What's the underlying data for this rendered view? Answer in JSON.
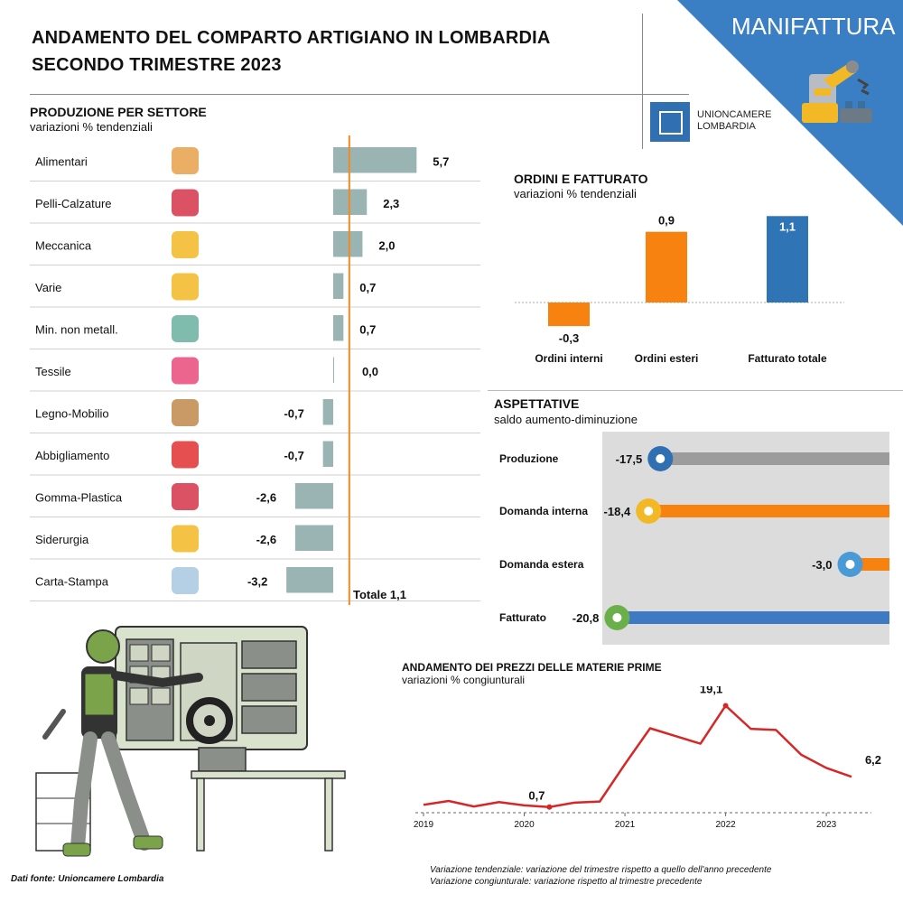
{
  "header": {
    "title_line1": "ANDAMENTO DEL COMPARTO ARTIGIANO IN LOMBARDIA",
    "title_line2": "SECONDO TRIMESTRE 2023",
    "corner_label": "MANIFATTURA",
    "logo_text_1": "UNIONCAMERE",
    "logo_text_2": "LOMBARDIA",
    "accent_color": "#3a7fc4"
  },
  "production": {
    "title": "PRODUZIONE PER SETTORE",
    "subtitle": "variazioni % tendenziali",
    "total_label": "Totale 1,1"
  },
  "orders": {
    "title": "ORDINI E FATTURATO",
    "subtitle": "variazioni % tendenziali"
  },
  "expectations": {
    "title": "ASPETTATIVE",
    "subtitle": "saldo aumento-diminuzione"
  },
  "prices": {
    "title": "ANDAMENTO DEI PREZZI DELLE MATERIE PRIME",
    "subtitle": "variazioni % congiunturali"
  },
  "footer": {
    "source": "Dati fonte: Unioncamere Lombardia",
    "note1": "Variazione tendenziale: variazione del trimestre rispetto a quello dell'anno precedente",
    "note2": "Variazione congiunturale: variazione rispetto al trimestre precedente"
  },
  "chart_data": [
    {
      "type": "bar",
      "orientation": "horizontal",
      "title": "PRODUZIONE PER SETTORE",
      "subtitle": "variazioni % tendenziali",
      "categories": [
        "Alimentari",
        "Pelli-Calzature",
        "Meccanica",
        "Varie",
        "Min. non metall.",
        "Tessile",
        "Legno-Mobilio",
        "Abbigliamento",
        "Gomma-Plastica",
        "Siderurgia",
        "Carta-Stampa"
      ],
      "values": [
        5.7,
        2.3,
        2.0,
        0.7,
        0.7,
        0.0,
        -0.7,
        -0.7,
        -2.6,
        -2.6,
        -3.2
      ],
      "labels": [
        "5,7",
        "2,3",
        "2,0",
        "0,7",
        "0,7",
        "0,0",
        "-0,7",
        "-0,7",
        "-2,6",
        "-2,6",
        "-3,2"
      ],
      "icons": [
        "grocery-bag-icon",
        "shoe-bag-icon",
        "machine-icon",
        "conveyor-boxes-icon",
        "crystal-rocks-icon",
        "thread-spools-icon",
        "chair-wood-icon",
        "dress-icon",
        "cup-icon",
        "steel-ladle-icon",
        "paper-roll-icon"
      ],
      "reference_line": 1.1,
      "bar_color": "#9ab4b4",
      "line_color": "#f08a24"
    },
    {
      "type": "bar",
      "title": "ORDINI E FATTURATO",
      "subtitle": "variazioni % tendenziali",
      "categories": [
        "Ordini interni",
        "Ordini esteri",
        "Fatturato totale"
      ],
      "values": [
        -0.3,
        0.9,
        1.1
      ],
      "labels": [
        "-0,3",
        "0,9",
        "1,1"
      ],
      "colors": [
        "#f7820f",
        "#f7820f",
        "#2f75b5"
      ]
    },
    {
      "type": "bar",
      "orientation": "horizontal",
      "title": "ASPETTATIVE",
      "subtitle": "saldo aumento-diminuzione",
      "categories": [
        "Produzione",
        "Domanda interna",
        "Domanda estera",
        "Fatturato"
      ],
      "values": [
        -17.5,
        -18.4,
        -3.0,
        -20.8
      ],
      "labels": [
        "-17,5",
        "-18,4",
        "-3,0",
        "-20,8"
      ],
      "colors": [
        "#9c9c9c",
        "#f7820f",
        "#f7820f",
        "#3e7ac4"
      ],
      "icons": [
        "gear-icon",
        "hand-gear-icon",
        "globe-icon",
        "money-icon"
      ]
    },
    {
      "type": "line",
      "title": "ANDAMENTO DEI PREZZI DELLE MATERIE PRIME",
      "subtitle": "variazioni % congiunturali",
      "x": [
        2019.0,
        2019.25,
        2019.5,
        2019.75,
        2020.0,
        2020.25,
        2020.5,
        2020.75,
        2021.0,
        2021.25,
        2021.5,
        2021.75,
        2022.0,
        2022.25,
        2022.5,
        2022.75,
        2023.0,
        2023.25
      ],
      "y": [
        1.1,
        1.8,
        0.8,
        1.6,
        1.0,
        0.7,
        1.5,
        1.7,
        8.5,
        15.0,
        13.6,
        12.2,
        19.1,
        14.9,
        14.7,
        10.2,
        7.8,
        6.2
      ],
      "xticks": [
        "2019",
        "2020",
        "2021",
        "2022",
        "2023"
      ],
      "annotations": [
        "0,7",
        "19,1",
        "6,2"
      ],
      "color": "#d62728"
    }
  ]
}
